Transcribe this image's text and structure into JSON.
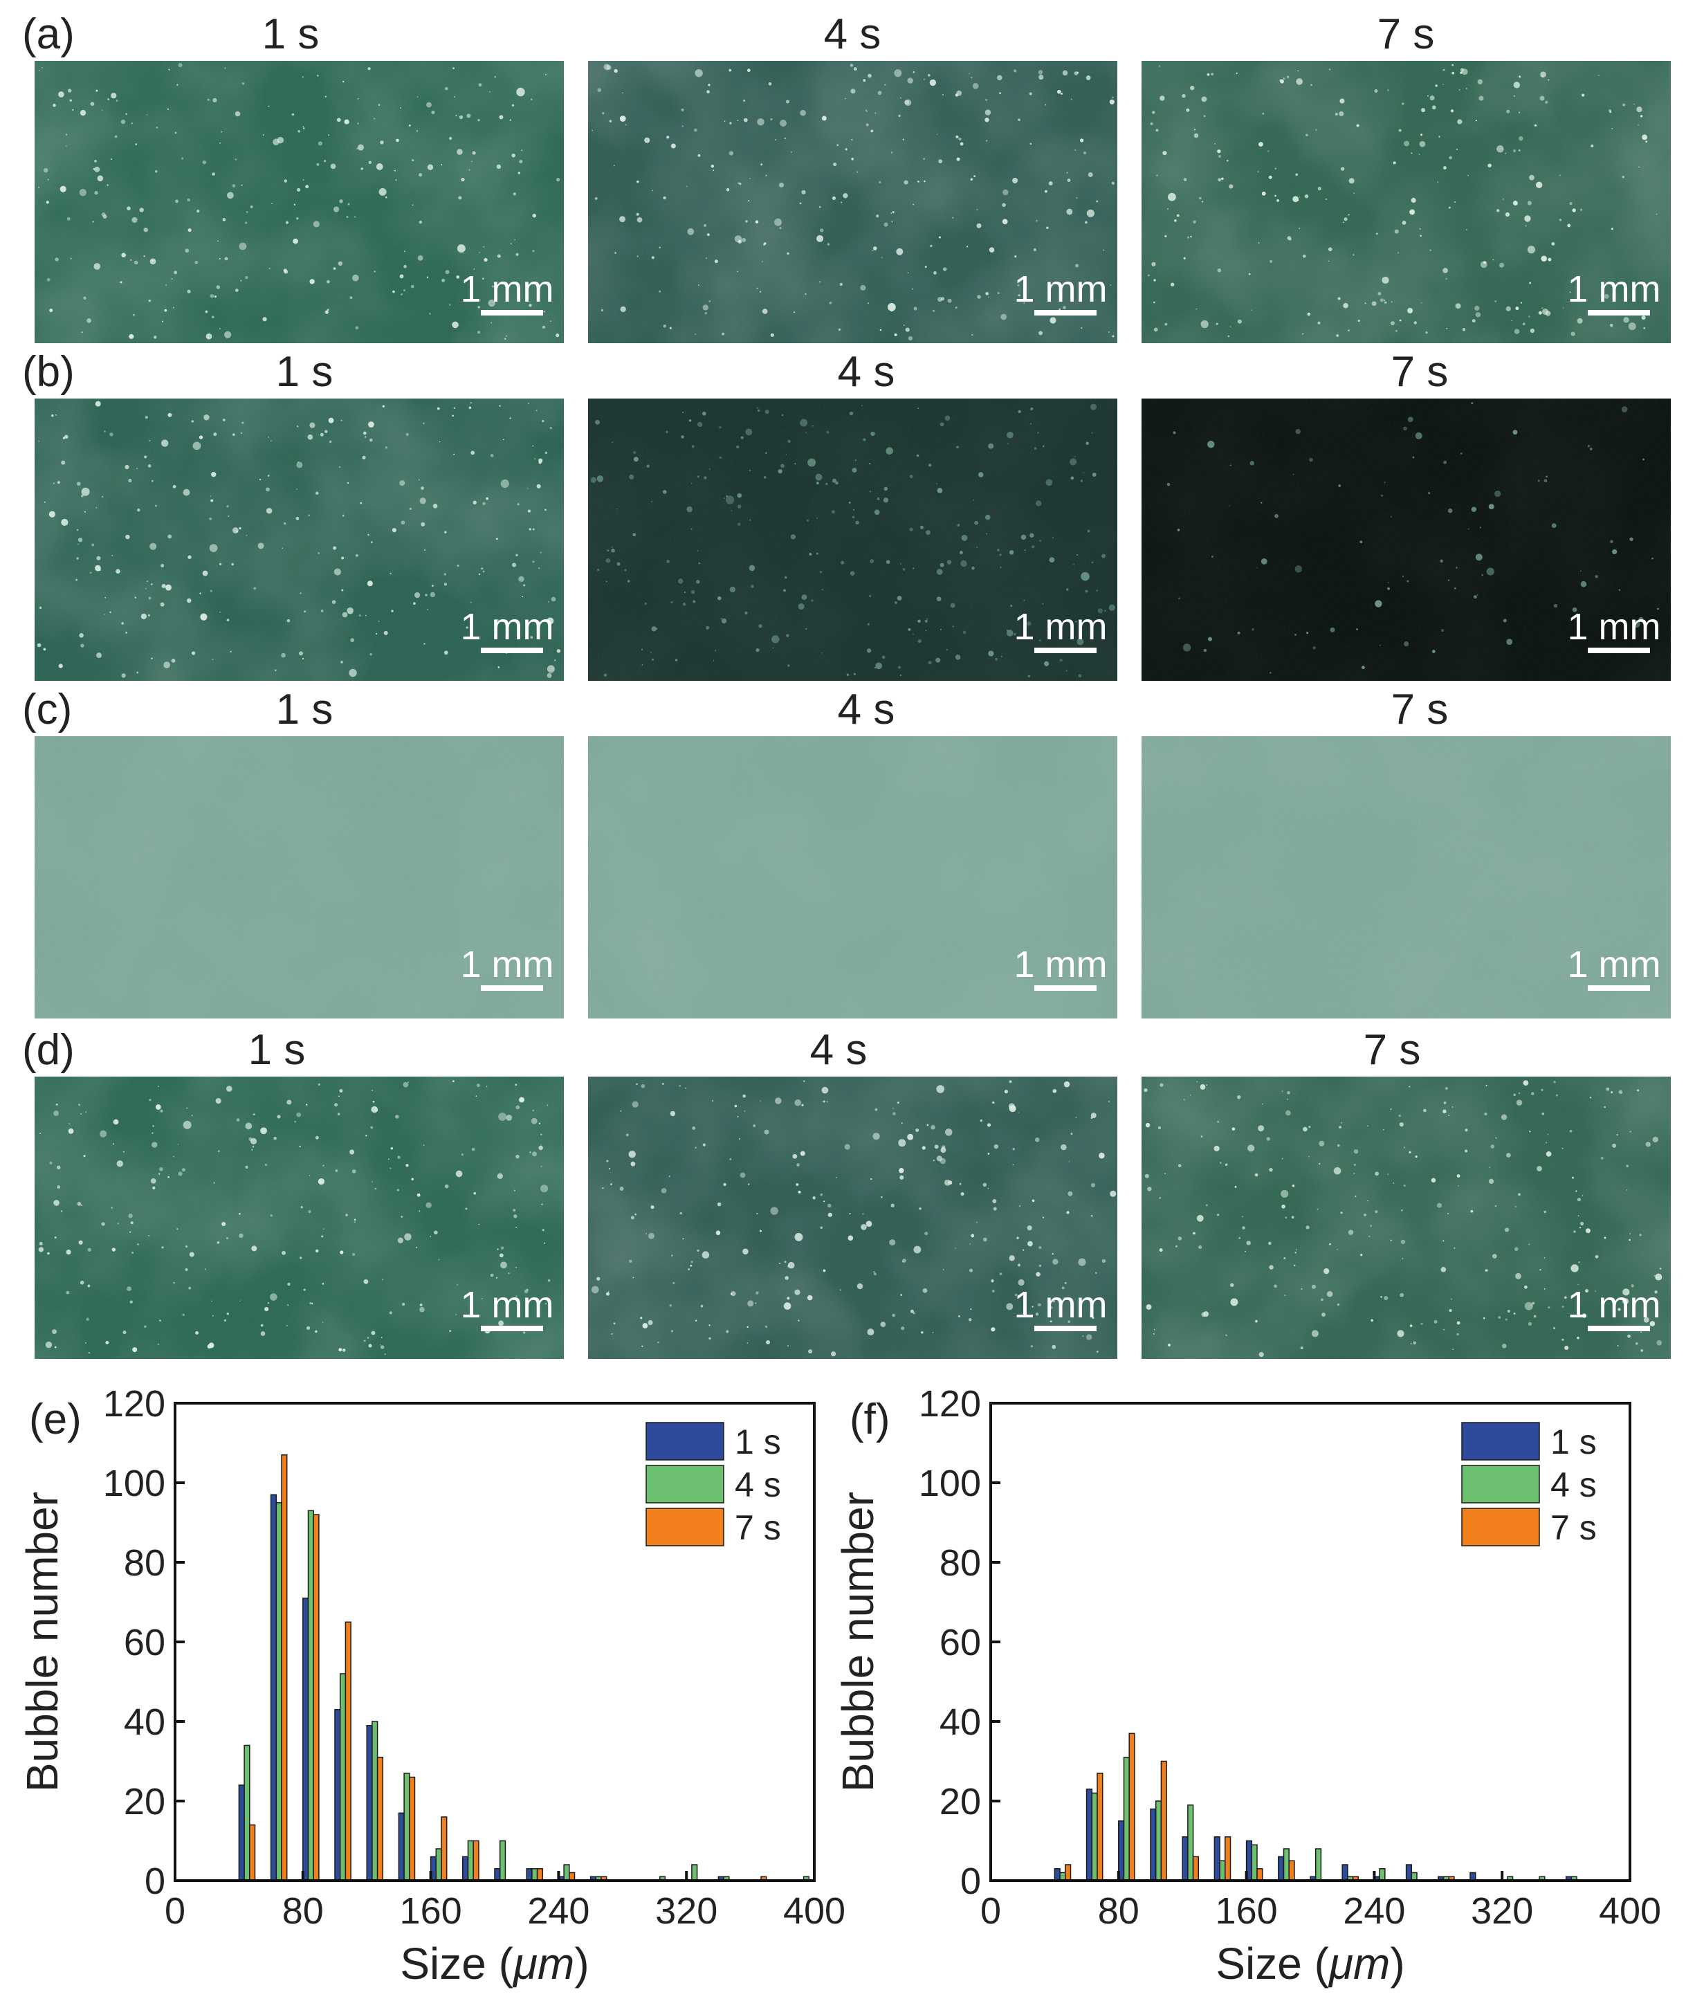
{
  "photo_grid": {
    "rows": [
      {
        "label": "(a)",
        "times": [
          "1 s",
          "4 s",
          "7 s"
        ],
        "scale": "1 mm",
        "tone": "bright"
      },
      {
        "label": "(b)",
        "times": [
          "1 s",
          "4 s",
          "7 s"
        ],
        "scale": "1 mm",
        "tone": "darkening"
      },
      {
        "label": "(c)",
        "times": [
          "1 s",
          "4 s",
          "7 s"
        ],
        "scale": "1 mm",
        "tone": "pale"
      },
      {
        "label": "(d)",
        "times": [
          "1 s",
          "4 s",
          "7 s"
        ],
        "scale": "1 mm",
        "tone": "bright"
      }
    ],
    "photo_colors": {
      "bright": [
        "#2f6a55",
        "#335f57",
        "#346754"
      ],
      "darkening": [
        "#2e6455",
        "#1d3631",
        "#0d1614"
      ],
      "pale": [
        "#7fa89a",
        "#80a99b",
        "#80a89b"
      ]
    }
  },
  "chart_data": [
    {
      "panel_label": "(e)",
      "type": "bar",
      "xlabel_prefix": "Size (",
      "xlabel_unit": "μm",
      "xlabel_suffix": ")",
      "ylabel": "Bubble number",
      "xlim": [
        0,
        400
      ],
      "ylim": [
        0,
        120
      ],
      "xticks": [
        0,
        80,
        160,
        240,
        320,
        400
      ],
      "yticks": [
        0,
        20,
        40,
        60,
        80,
        100,
        120
      ],
      "bin_width": 10,
      "legend_position": "top-right",
      "bins": [
        45,
        55,
        65,
        75,
        85,
        95,
        105,
        115,
        125,
        135,
        145,
        155,
        165,
        175,
        185,
        195,
        205,
        215,
        225,
        235,
        245,
        255,
        265,
        275,
        285,
        295,
        305,
        315,
        325,
        335,
        345,
        355,
        365,
        375,
        385,
        395
      ],
      "series": [
        {
          "name": "1 s",
          "color": "#2e4b9b",
          "values": [
            24,
            0,
            97,
            0,
            71,
            0,
            43,
            0,
            39,
            0,
            17,
            0,
            6,
            0,
            6,
            0,
            3,
            0,
            3,
            0,
            1,
            0,
            1,
            0,
            0,
            0,
            0,
            0,
            0,
            0,
            1,
            0,
            0,
            0,
            0,
            0
          ]
        },
        {
          "name": "4 s",
          "color": "#6cc070",
          "values": [
            34,
            0,
            95,
            0,
            93,
            0,
            52,
            0,
            40,
            0,
            27,
            0,
            8,
            0,
            10,
            0,
            10,
            0,
            3,
            0,
            4,
            0,
            1,
            0,
            0,
            0,
            1,
            0,
            4,
            0,
            1,
            0,
            0,
            0,
            0,
            1
          ]
        },
        {
          "name": "7 s",
          "color": "#f07f1c",
          "values": [
            14,
            0,
            107,
            0,
            92,
            0,
            65,
            0,
            31,
            0,
            26,
            0,
            16,
            0,
            10,
            0,
            0,
            0,
            3,
            0,
            2,
            0,
            1,
            0,
            0,
            0,
            0,
            0,
            0,
            0,
            0,
            0,
            1,
            0,
            0,
            0
          ]
        }
      ]
    },
    {
      "panel_label": "(f)",
      "type": "bar",
      "xlabel_prefix": "Size (",
      "xlabel_unit": "μm",
      "xlabel_suffix": ")",
      "ylabel": "Bubble number",
      "xlim": [
        0,
        400
      ],
      "ylim": [
        0,
        120
      ],
      "xticks": [
        0,
        80,
        160,
        240,
        320,
        400
      ],
      "yticks": [
        0,
        20,
        40,
        60,
        80,
        100,
        120
      ],
      "bin_width": 10,
      "legend_position": "top-right",
      "bins": [
        45,
        55,
        65,
        75,
        85,
        95,
        105,
        115,
        125,
        135,
        145,
        155,
        165,
        175,
        185,
        195,
        205,
        215,
        225,
        235,
        245,
        255,
        265,
        275,
        285,
        295,
        305,
        315,
        325,
        335,
        345,
        355,
        365,
        375,
        385,
        395
      ],
      "series": [
        {
          "name": "1 s",
          "color": "#2e4b9b",
          "values": [
            3,
            0,
            23,
            0,
            15,
            0,
            18,
            0,
            11,
            0,
            11,
            0,
            10,
            0,
            6,
            0,
            1,
            0,
            4,
            0,
            1,
            0,
            4,
            0,
            1,
            0,
            2,
            0,
            0,
            0,
            0,
            0,
            1,
            0,
            0,
            0
          ]
        },
        {
          "name": "4 s",
          "color": "#6cc070",
          "values": [
            2,
            0,
            22,
            0,
            31,
            0,
            20,
            0,
            19,
            0,
            5,
            0,
            9,
            0,
            8,
            0,
            8,
            0,
            1,
            0,
            3,
            0,
            2,
            0,
            1,
            0,
            0,
            0,
            1,
            0,
            1,
            0,
            1,
            0,
            0,
            0
          ]
        },
        {
          "name": "7 s",
          "color": "#f07f1c",
          "values": [
            4,
            0,
            27,
            0,
            37,
            0,
            30,
            0,
            6,
            0,
            11,
            0,
            3,
            0,
            5,
            0,
            0,
            0,
            1,
            0,
            0,
            0,
            0,
            0,
            1,
            0,
            0,
            0,
            0,
            0,
            0,
            0,
            0,
            0,
            0,
            0
          ]
        }
      ]
    }
  ]
}
